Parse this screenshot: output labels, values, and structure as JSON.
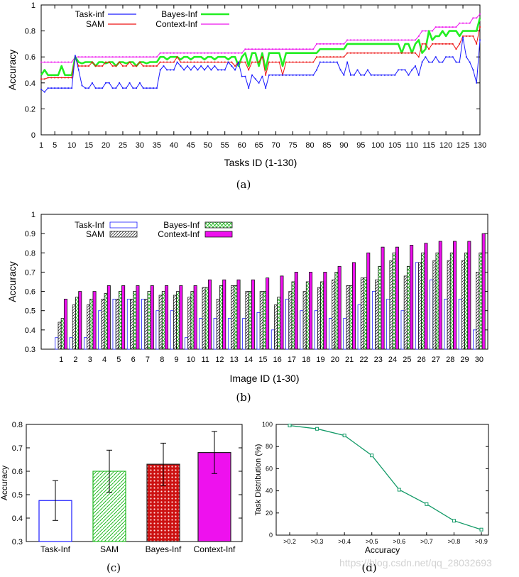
{
  "watermark": "https://blog.csdn.net/qq_28032693",
  "colors": {
    "task": "#1a1aff",
    "sam": "#ee1111",
    "bayes": "#22ee22",
    "context": "#ee11ee",
    "bayes_bar": "#cc1111",
    "distribution": "#119966"
  },
  "chart_data": [
    {
      "id": "a",
      "caption": "(a)",
      "type": "line",
      "xlabel": "Tasks ID (1-130)",
      "ylabel": "Accuracy",
      "xlim": [
        1,
        130
      ],
      "ylim": [
        0,
        1
      ],
      "yticks": [
        "0",
        "0.2",
        "0.4",
        "0.6",
        "0.8",
        "1"
      ],
      "xticks": [
        "1",
        "5",
        "10",
        "15",
        "20",
        "25",
        "30",
        "35",
        "40",
        "45",
        "50",
        "55",
        "60",
        "65",
        "70",
        "75",
        "80",
        "85",
        "90",
        "95",
        "100",
        "105",
        "110",
        "115",
        "120",
        "125",
        "130"
      ],
      "series": [
        {
          "name": "Task-inf",
          "key": "task",
          "values": [
            0.35,
            0.33,
            0.36,
            0.36,
            0.36,
            0.36,
            0.36,
            0.36,
            0.36,
            0.36,
            0.61,
            0.5,
            0.38,
            0.36,
            0.36,
            0.4,
            0.36,
            0.36,
            0.36,
            0.4,
            0.4,
            0.36,
            0.36,
            0.4,
            0.36,
            0.36,
            0.4,
            0.36,
            0.36,
            0.4,
            0.36,
            0.36,
            0.36,
            0.36,
            0.36,
            0.5,
            0.53,
            0.5,
            0.5,
            0.5,
            0.56,
            0.53,
            0.5,
            0.53,
            0.5,
            0.53,
            0.5,
            0.53,
            0.5,
            0.53,
            0.5,
            0.53,
            0.5,
            0.5,
            0.5,
            0.56,
            0.53,
            0.5,
            0.56,
            0.45,
            0.45,
            0.36,
            0.46,
            0.43,
            0.4,
            0.45,
            0.36,
            0.46,
            0.46,
            0.46,
            0.46,
            0.46,
            0.46,
            0.46,
            0.46,
            0.46,
            0.46,
            0.46,
            0.46,
            0.46,
            0.46,
            0.5,
            0.56,
            0.56,
            0.56,
            0.56,
            0.56,
            0.56,
            0.5,
            0.46,
            0.56,
            0.46,
            0.46,
            0.5,
            0.46,
            0.46,
            0.5,
            0.46,
            0.46,
            0.46,
            0.46,
            0.46,
            0.46,
            0.46,
            0.46,
            0.5,
            0.5,
            0.5,
            0.46,
            0.5,
            0.53,
            0.46,
            0.56,
            0.6,
            0.56,
            0.56,
            0.6,
            0.56,
            0.56,
            0.6,
            0.6,
            0.6,
            0.56,
            0.56,
            0.75,
            0.6,
            0.56,
            0.5,
            0.4,
            0.73
          ]
        },
        {
          "name": "SAM",
          "key": "sam",
          "values": [
            0.43,
            0.43,
            0.44,
            0.44,
            0.44,
            0.44,
            0.44,
            0.44,
            0.44,
            0.44,
            0.6,
            0.53,
            0.53,
            0.53,
            0.53,
            0.56,
            0.53,
            0.53,
            0.53,
            0.56,
            0.56,
            0.53,
            0.53,
            0.56,
            0.53,
            0.53,
            0.56,
            0.53,
            0.53,
            0.56,
            0.53,
            0.53,
            0.53,
            0.53,
            0.53,
            0.56,
            0.56,
            0.56,
            0.56,
            0.56,
            0.6,
            0.56,
            0.56,
            0.56,
            0.56,
            0.56,
            0.56,
            0.56,
            0.56,
            0.56,
            0.56,
            0.56,
            0.56,
            0.56,
            0.56,
            0.56,
            0.56,
            0.53,
            0.56,
            0.56,
            0.56,
            0.5,
            0.56,
            0.56,
            0.56,
            0.6,
            0.46,
            0.56,
            0.56,
            0.56,
            0.56,
            0.46,
            0.56,
            0.56,
            0.56,
            0.56,
            0.56,
            0.56,
            0.56,
            0.56,
            0.56,
            0.6,
            0.6,
            0.6,
            0.6,
            0.6,
            0.6,
            0.6,
            0.6,
            0.6,
            0.63,
            0.63,
            0.63,
            0.63,
            0.63,
            0.63,
            0.63,
            0.63,
            0.63,
            0.63,
            0.63,
            0.63,
            0.63,
            0.63,
            0.63,
            0.63,
            0.63,
            0.63,
            0.63,
            0.63,
            0.63,
            0.6,
            0.7,
            0.7,
            0.66,
            0.7,
            0.7,
            0.7,
            0.7,
            0.7,
            0.7,
            0.7,
            0.66,
            0.7,
            0.76,
            0.76,
            0.76,
            0.76,
            0.7,
            0.83
          ]
        },
        {
          "name": "Bayes-Inf",
          "key": "bayes",
          "values": [
            0.46,
            0.5,
            0.46,
            0.46,
            0.46,
            0.46,
            0.53,
            0.46,
            0.46,
            0.46,
            0.6,
            0.56,
            0.55,
            0.56,
            0.56,
            0.56,
            0.53,
            0.56,
            0.56,
            0.55,
            0.56,
            0.56,
            0.53,
            0.56,
            0.56,
            0.55,
            0.56,
            0.56,
            0.53,
            0.56,
            0.56,
            0.55,
            0.56,
            0.56,
            0.56,
            0.6,
            0.6,
            0.58,
            0.6,
            0.6,
            0.6,
            0.58,
            0.6,
            0.6,
            0.58,
            0.6,
            0.6,
            0.6,
            0.58,
            0.6,
            0.6,
            0.58,
            0.6,
            0.6,
            0.6,
            0.58,
            0.6,
            0.6,
            0.53,
            0.6,
            0.63,
            0.53,
            0.63,
            0.63,
            0.53,
            0.63,
            0.5,
            0.63,
            0.63,
            0.63,
            0.63,
            0.53,
            0.63,
            0.63,
            0.63,
            0.63,
            0.63,
            0.63,
            0.63,
            0.63,
            0.63,
            0.63,
            0.66,
            0.66,
            0.66,
            0.66,
            0.66,
            0.66,
            0.66,
            0.66,
            0.7,
            0.7,
            0.7,
            0.7,
            0.7,
            0.7,
            0.7,
            0.7,
            0.7,
            0.7,
            0.7,
            0.7,
            0.7,
            0.7,
            0.7,
            0.7,
            0.63,
            0.7,
            0.7,
            0.63,
            0.7,
            0.73,
            0.63,
            0.66,
            0.8,
            0.73,
            0.76,
            0.76,
            0.8,
            0.76,
            0.8,
            0.8,
            0.8,
            0.76,
            0.8,
            0.8,
            0.8,
            0.8,
            0.8,
            0.9
          ]
        },
        {
          "name": "Context-Inf",
          "key": "context",
          "values": [
            0.56,
            0.56,
            0.56,
            0.56,
            0.56,
            0.56,
            0.56,
            0.56,
            0.56,
            0.56,
            0.6,
            0.6,
            0.6,
            0.6,
            0.6,
            0.6,
            0.6,
            0.6,
            0.6,
            0.6,
            0.6,
            0.6,
            0.6,
            0.6,
            0.6,
            0.6,
            0.6,
            0.6,
            0.6,
            0.6,
            0.6,
            0.6,
            0.6,
            0.6,
            0.6,
            0.63,
            0.63,
            0.63,
            0.63,
            0.63,
            0.63,
            0.63,
            0.63,
            0.63,
            0.63,
            0.63,
            0.63,
            0.63,
            0.63,
            0.63,
            0.63,
            0.63,
            0.63,
            0.63,
            0.63,
            0.63,
            0.63,
            0.63,
            0.63,
            0.63,
            0.66,
            0.66,
            0.66,
            0.66,
            0.66,
            0.66,
            0.66,
            0.66,
            0.66,
            0.66,
            0.66,
            0.66,
            0.66,
            0.66,
            0.66,
            0.66,
            0.66,
            0.66,
            0.66,
            0.66,
            0.66,
            0.7,
            0.7,
            0.7,
            0.7,
            0.7,
            0.7,
            0.7,
            0.7,
            0.7,
            0.73,
            0.73,
            0.73,
            0.73,
            0.73,
            0.73,
            0.73,
            0.73,
            0.73,
            0.73,
            0.73,
            0.73,
            0.73,
            0.73,
            0.73,
            0.73,
            0.73,
            0.73,
            0.73,
            0.73,
            0.73,
            0.76,
            0.8,
            0.8,
            0.8,
            0.8,
            0.83,
            0.83,
            0.83,
            0.83,
            0.83,
            0.83,
            0.83,
            0.86,
            0.86,
            0.86,
            0.86,
            0.9,
            0.9,
            0.93
          ]
        }
      ]
    },
    {
      "id": "b",
      "caption": "(b)",
      "type": "bar",
      "xlabel": "Image ID (1-30)",
      "ylabel": "Accuracy",
      "ylim": [
        0.3,
        1
      ],
      "yticks": [
        "0.3",
        "0.4",
        "0.5",
        "0.6",
        "0.7",
        "0.8",
        "0.9",
        "1"
      ],
      "categories": [
        "1",
        "2",
        "3",
        "4",
        "5",
        "6",
        "7",
        "8",
        "9",
        "10",
        "11",
        "12",
        "13",
        "14",
        "15",
        "16",
        "17",
        "18",
        "19",
        "20",
        "21",
        "22",
        "23",
        "24",
        "25",
        "26",
        "27",
        "28",
        "29",
        "30"
      ],
      "series": [
        {
          "name": "Task-Inf",
          "key": "task",
          "values": [
            0.36,
            0.36,
            0.36,
            0.5,
            0.56,
            0.56,
            0.56,
            0.5,
            0.5,
            0.36,
            0.46,
            0.46,
            0.46,
            0.46,
            0.49,
            0.4,
            0.56,
            0.5,
            0.5,
            0.46,
            0.46,
            0.53,
            0.6,
            0.56,
            0.5,
            0.75,
            0.66,
            0.56,
            0.56,
            0.4
          ]
        },
        {
          "name": "SAM",
          "key": "sam",
          "values": [
            0.44,
            0.53,
            0.53,
            0.56,
            0.56,
            0.56,
            0.56,
            0.58,
            0.58,
            0.57,
            0.62,
            0.56,
            0.63,
            0.6,
            0.6,
            0.53,
            0.6,
            0.6,
            0.62,
            0.66,
            0.63,
            0.67,
            0.66,
            0.76,
            0.68,
            0.75,
            0.76,
            0.76,
            0.76,
            0.7
          ]
        },
        {
          "name": "Bayes-Inf",
          "key": "bayes",
          "values": [
            0.46,
            0.57,
            0.56,
            0.59,
            0.6,
            0.6,
            0.6,
            0.6,
            0.6,
            0.6,
            0.62,
            0.63,
            0.63,
            0.6,
            0.6,
            0.57,
            0.65,
            0.65,
            0.65,
            0.7,
            0.63,
            0.67,
            0.73,
            0.8,
            0.73,
            0.8,
            0.8,
            0.8,
            0.8,
            0.8
          ]
        },
        {
          "name": "Context-Inf",
          "key": "context",
          "values": [
            0.56,
            0.6,
            0.6,
            0.63,
            0.63,
            0.63,
            0.63,
            0.63,
            0.63,
            0.63,
            0.66,
            0.66,
            0.66,
            0.66,
            0.67,
            0.68,
            0.7,
            0.7,
            0.7,
            0.73,
            0.75,
            0.8,
            0.83,
            0.83,
            0.84,
            0.85,
            0.86,
            0.86,
            0.86,
            0.9
          ]
        }
      ]
    },
    {
      "id": "c",
      "caption": "(c)",
      "type": "bar",
      "ylabel": "Accuracy",
      "ylim": [
        0.3,
        0.8
      ],
      "yticks": [
        "0.3",
        "0.4",
        "0.5",
        "0.6",
        "0.7",
        "0.8"
      ],
      "categories": [
        "Task-Inf",
        "SAM",
        "Bayes-Inf",
        "Context-Inf"
      ],
      "values": [
        0.475,
        0.6,
        0.63,
        0.68
      ],
      "errors": [
        0.085,
        0.09,
        0.09,
        0.09
      ]
    },
    {
      "id": "d",
      "caption": "(d)",
      "type": "line",
      "xlabel": "Accuracy",
      "ylabel": "Task Distribution (%)",
      "ylim": [
        0,
        100
      ],
      "yticks": [
        "0",
        "20",
        "40",
        "60",
        "80",
        "100"
      ],
      "categories": [
        ">0.2",
        ">0.3",
        ">0.4",
        ">0.5",
        ">0.6",
        ">0.7",
        ">0.8",
        ">0.9"
      ],
      "values": [
        99,
        96,
        90,
        72,
        41,
        28,
        13,
        5
      ]
    }
  ]
}
